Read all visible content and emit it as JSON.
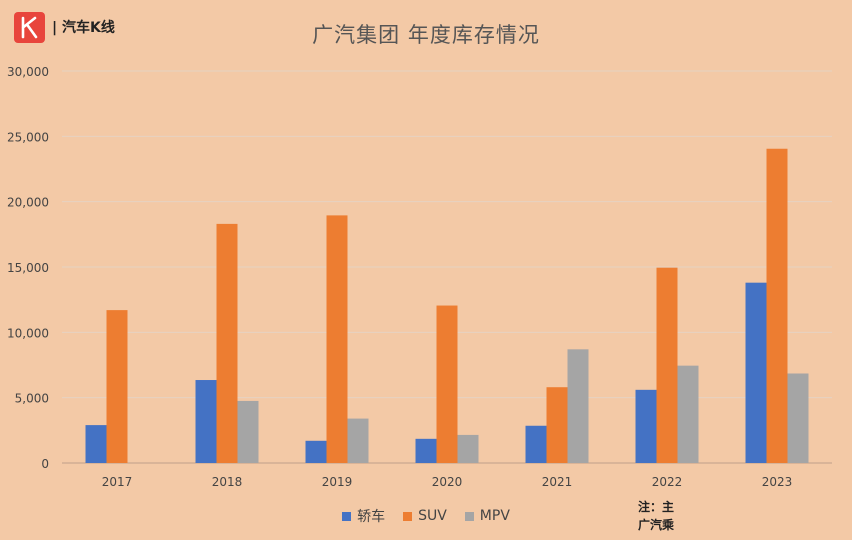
{
  "logo": {
    "name": "汽车K线",
    "icon": "k-logo-icon"
  },
  "note": {
    "line1": "注：主",
    "line2": "广汽乘"
  },
  "chart_data": {
    "type": "bar",
    "title": "广汽集团 年度库存情况",
    "categories": [
      "2017",
      "2018",
      "2019",
      "2020",
      "2021",
      "2022",
      "2023"
    ],
    "series": [
      {
        "name": "轿车",
        "color": "#4472c4",
        "values": [
          2900,
          6350,
          1700,
          1850,
          2850,
          5600,
          13800
        ]
      },
      {
        "name": "SUV",
        "color": "#ed7d31",
        "values": [
          11700,
          18300,
          18950,
          12050,
          5800,
          14950,
          24050
        ]
      },
      {
        "name": "MPV",
        "color": "#a5a5a5",
        "values": [
          null,
          4750,
          3400,
          2150,
          8700,
          7450,
          6850
        ]
      }
    ],
    "yticks": [
      "0",
      "5,000",
      "10,000",
      "15,000",
      "20,000",
      "25,000",
      "30,000"
    ],
    "ylim": [
      0,
      30000
    ],
    "grid": true,
    "legend_position": "bottom"
  }
}
